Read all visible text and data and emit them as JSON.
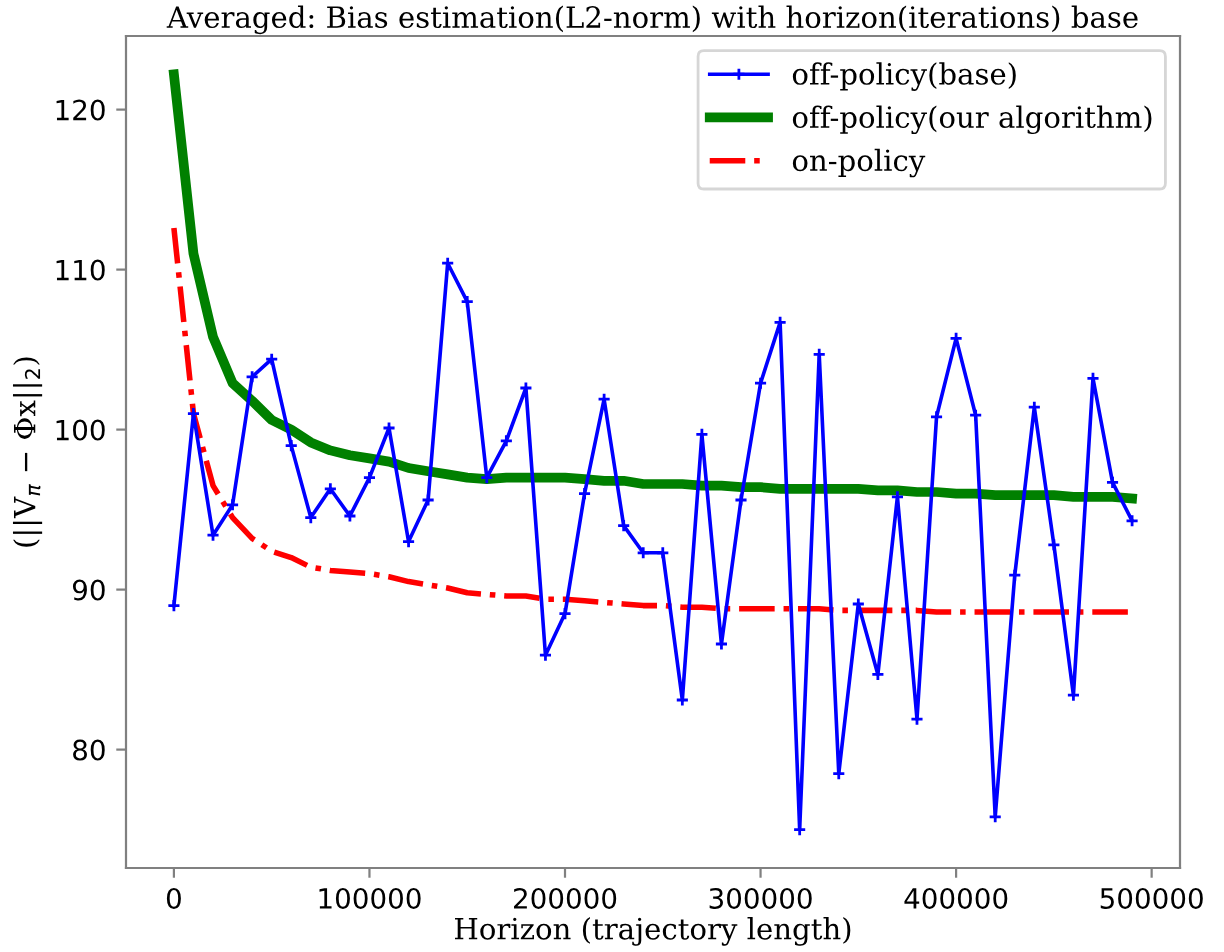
{
  "chart_data": {
    "type": "line",
    "title": "Averaged: Bias estimation(L2-norm) with horizon(iterations) base",
    "xlabel": "Horizon (trajectory length)",
    "ylabel": "(||V$_{π}$ − Φx||$_{2}$)",
    "x": [
      0,
      10000,
      20000,
      30000,
      40000,
      50000,
      60000,
      70000,
      80000,
      90000,
      100000,
      110000,
      120000,
      130000,
      140000,
      150000,
      160000,
      170000,
      180000,
      190000,
      200000,
      210000,
      220000,
      230000,
      240000,
      250000,
      260000,
      270000,
      280000,
      290000,
      300000,
      310000,
      320000,
      330000,
      340000,
      350000,
      360000,
      370000,
      380000,
      390000,
      400000,
      410000,
      420000,
      430000,
      440000,
      450000,
      460000,
      470000,
      480000,
      490000
    ],
    "series": [
      {
        "name": "off-policy(base)",
        "color": "#0000ff",
        "marker": "cross",
        "line_style": "solid",
        "values": [
          89.0,
          101.0,
          93.4,
          95.3,
          103.3,
          104.4,
          99.0,
          94.5,
          96.3,
          94.6,
          97.0,
          100.1,
          93.0,
          95.6,
          110.4,
          108.0,
          97.0,
          99.3,
          102.6,
          85.9,
          88.5,
          96.0,
          101.9,
          94.0,
          92.3,
          92.3,
          83.1,
          99.7,
          86.6,
          95.6,
          102.9,
          106.7,
          75.0,
          104.7,
          78.5,
          89.1,
          84.7,
          95.8,
          81.9,
          100.8,
          105.7,
          100.9,
          75.8,
          90.9,
          101.4,
          92.8,
          83.4,
          103.2,
          96.7,
          94.3
        ]
      },
      {
        "name": "off-policy(our algorithm)",
        "color": "#008000",
        "marker": "none",
        "line_style": "solid",
        "values": [
          122.2,
          111.0,
          105.8,
          102.9,
          101.8,
          100.6,
          100.0,
          99.2,
          98.7,
          98.4,
          98.2,
          98.0,
          97.6,
          97.4,
          97.2,
          97.0,
          96.9,
          97.0,
          97.0,
          97.0,
          97.0,
          96.9,
          96.8,
          96.8,
          96.6,
          96.6,
          96.6,
          96.5,
          96.5,
          96.4,
          96.4,
          96.3,
          96.3,
          96.3,
          96.3,
          96.3,
          96.2,
          96.2,
          96.1,
          96.1,
          96.0,
          96.0,
          95.9,
          95.9,
          95.9,
          95.9,
          95.8,
          95.8,
          95.8,
          95.7
        ]
      },
      {
        "name": "on-policy",
        "color": "#ff0000",
        "marker": "none",
        "line_style": "dashdot",
        "values": [
          112.6,
          101.0,
          96.5,
          94.5,
          93.2,
          92.4,
          92.0,
          91.4,
          91.2,
          91.1,
          91.0,
          90.8,
          90.5,
          90.3,
          90.1,
          89.8,
          89.7,
          89.6,
          89.6,
          89.4,
          89.4,
          89.3,
          89.2,
          89.1,
          89.0,
          89.0,
          88.9,
          88.9,
          88.8,
          88.8,
          88.8,
          88.8,
          88.8,
          88.8,
          88.7,
          88.7,
          88.7,
          88.7,
          88.7,
          88.6,
          88.6,
          88.6,
          88.6,
          88.6,
          88.6,
          88.6,
          88.6,
          88.6,
          88.6,
          88.6
        ]
      }
    ],
    "xlim": [
      -24500,
      514500
    ],
    "ylim": [
      72.6,
      124.6
    ],
    "xticks": [
      0,
      100000,
      200000,
      300000,
      400000,
      500000
    ],
    "yticks": [
      80,
      90,
      100,
      110,
      120
    ],
    "grid": false,
    "legend": "top right"
  }
}
